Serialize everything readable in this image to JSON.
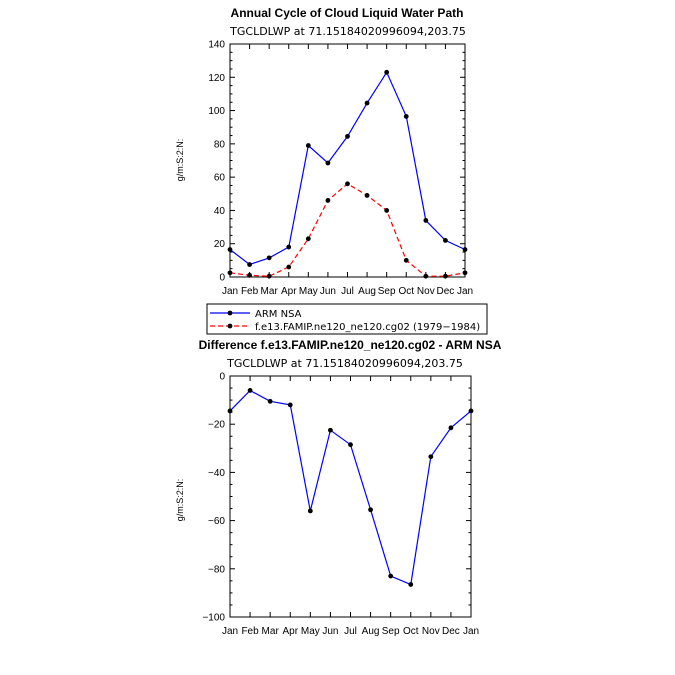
{
  "chart_data": [
    {
      "type": "line",
      "title": "Annual Cycle of Cloud Liquid Water Path",
      "subtitle": "TGCLDLWP at 71.15184020996094,203.75",
      "ylabel": "g/m:S:2:N:",
      "ylim": [
        0,
        140
      ],
      "yticks": [
        0,
        20,
        40,
        60,
        80,
        100,
        120,
        140
      ],
      "categories": [
        "Jan",
        "Feb",
        "Mar",
        "Apr",
        "May",
        "Jun",
        "Jul",
        "Aug",
        "Sep",
        "Oct",
        "Nov",
        "Dec",
        "Jan"
      ],
      "series": [
        {
          "name": "ARM NSA",
          "color": "#0000ff",
          "dash": "solid",
          "values": [
            16.5,
            7.5,
            11.5,
            18,
            79,
            68.5,
            84.5,
            104.5,
            123,
            96.5,
            34,
            22,
            16.5
          ]
        },
        {
          "name": "f.e13.FAMIP.ne120_ne120.cg02 (1979−1984)",
          "color": "#ff0000",
          "dash": "dashed",
          "values": [
            2.5,
            1,
            0.5,
            6,
            23,
            46,
            56,
            49,
            40,
            10,
            0.5,
            0.5,
            2.5
          ]
        }
      ],
      "legend": {
        "position": "bottom-left",
        "entries": [
          "ARM NSA",
          "f.e13.FAMIP.ne120_ne120.cg02 (1979−1984)"
        ]
      }
    },
    {
      "type": "line",
      "title": "Difference f.e13.FAMIP.ne120_ne120.cg02 - ARM NSA",
      "subtitle": "TGCLDLWP at 71.15184020996094,203.75",
      "ylabel": "g/m:S:2:N:",
      "ylim": [
        -100,
        0
      ],
      "yticks": [
        0,
        -20,
        -40,
        -60,
        -80,
        -100
      ],
      "categories": [
        "Jan",
        "Feb",
        "Mar",
        "Apr",
        "May",
        "Jun",
        "Jul",
        "Aug",
        "Sep",
        "Oct",
        "Nov",
        "Dec",
        "Jan"
      ],
      "series": [
        {
          "name": "Difference",
          "color": "#0000ff",
          "dash": "solid",
          "values": [
            -14.5,
            -6,
            -10.5,
            -12,
            -56,
            -22.5,
            -28.5,
            -55.5,
            -83,
            -86.5,
            -33.5,
            -21.5,
            -14.5
          ]
        }
      ]
    }
  ]
}
